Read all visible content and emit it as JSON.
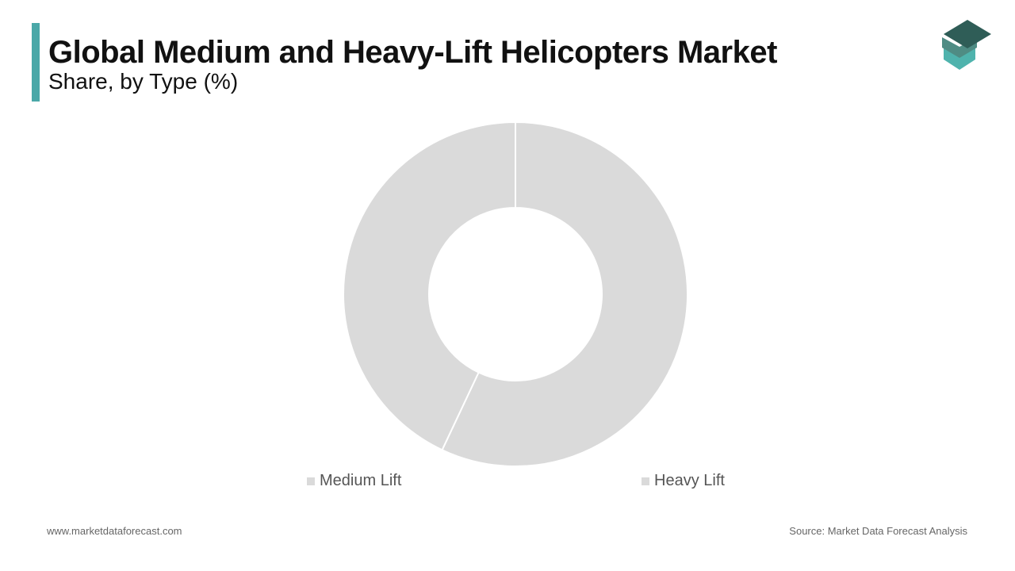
{
  "header": {
    "title": "Global Medium and Heavy-Lift Helicopters Market",
    "subtitle": "Share, by Type (%)"
  },
  "colors": {
    "accent": "#4aa8a8",
    "slice": "#dadada",
    "logo_dark": "#2f5d57",
    "logo_mid": "#4f8c84",
    "logo_light": "#4fb3ad"
  },
  "chart_data": {
    "type": "pie",
    "donut": true,
    "categories": [
      "Heavy Lift",
      "Medium Lift"
    ],
    "values": [
      57,
      43
    ],
    "legend": [
      "Medium Lift",
      "Heavy Lift"
    ],
    "legend_position": "bottom",
    "title": "Global Medium and Heavy-Lift Helicopters Market",
    "subtitle": "Share, by Type (%)"
  },
  "footer": {
    "website": "www.marketdataforecast.com",
    "source": "Source: Market Data Forecast Analysis"
  },
  "logo_icon": "stacked-layers-icon"
}
